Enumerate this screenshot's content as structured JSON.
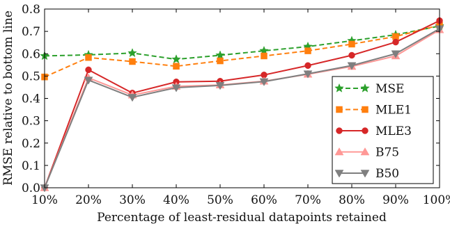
{
  "chart_data": {
    "type": "line",
    "xlabel": "Percentage of least-residual datapoints retained",
    "ylabel": "RMSE relative to bottom line",
    "categories": [
      "10%",
      "20%",
      "30%",
      "40%",
      "50%",
      "60%",
      "70%",
      "80%",
      "90%",
      "100%"
    ],
    "ylim": [
      0.0,
      0.8
    ],
    "yticks": [
      "0.0",
      "0.1",
      "0.2",
      "0.3",
      "0.4",
      "0.5",
      "0.6",
      "0.7",
      "0.8"
    ],
    "legend_position": "lower-right",
    "grid": false,
    "series": [
      {
        "name": "MSE",
        "color": "#2ca02c",
        "marker": "star",
        "line_style": "dashed",
        "values": [
          0.59,
          0.595,
          0.603,
          0.575,
          0.593,
          0.613,
          0.632,
          0.658,
          0.685,
          0.724
        ]
      },
      {
        "name": "MLE1",
        "color": "#ff7f0e",
        "marker": "square",
        "line_style": "dashed",
        "values": [
          0.496,
          0.583,
          0.565,
          0.544,
          0.568,
          0.59,
          0.613,
          0.643,
          0.677,
          0.728
        ]
      },
      {
        "name": "MLE3",
        "color": "#d62728",
        "marker": "circle",
        "line_style": "solid",
        "values": [
          0.0,
          0.528,
          0.424,
          0.474,
          0.477,
          0.505,
          0.547,
          0.593,
          0.652,
          0.748
        ]
      },
      {
        "name": "B75",
        "color": "#ff9896",
        "marker": "triangle-up",
        "line_style": "solid",
        "values": [
          0.0,
          0.492,
          0.415,
          0.454,
          0.46,
          0.477,
          0.508,
          0.543,
          0.59,
          0.707
        ]
      },
      {
        "name": "B50",
        "color": "#7f7f7f",
        "marker": "triangle-down",
        "line_style": "solid",
        "values": [
          0.0,
          0.482,
          0.405,
          0.448,
          0.458,
          0.475,
          0.51,
          0.547,
          0.6,
          0.712
        ]
      }
    ]
  }
}
